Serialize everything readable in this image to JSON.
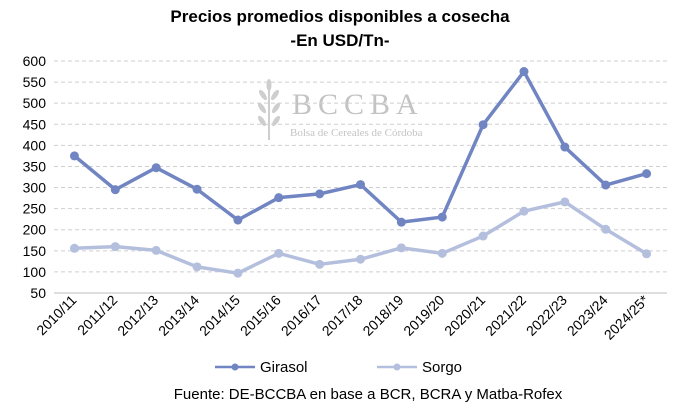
{
  "chart_data": {
    "type": "line",
    "title": "Precios promedios disponibles a cosecha",
    "subtitle": "-En USD/Tn-",
    "categories": [
      "2010/11",
      "2011/12",
      "2012/13",
      "2013/14",
      "2014/15",
      "2015/16",
      "2016/17",
      "2017/18",
      "2018/19",
      "2019/20",
      "2020/21",
      "2021/22",
      "2022/23",
      "2023/24",
      "2024/25*"
    ],
    "series": [
      {
        "name": "Girasol",
        "color": "#7085c2",
        "values": [
          375,
          295,
          347,
          296,
          223,
          276,
          285,
          307,
          218,
          230,
          449,
          575,
          396,
          306,
          333
        ]
      },
      {
        "name": "Sorgo",
        "color": "#b4bfde",
        "values": [
          156,
          160,
          151,
          112,
          97,
          144,
          118,
          130,
          157,
          144,
          185,
          244,
          266,
          201,
          143
        ]
      }
    ],
    "ylim": [
      50,
      600
    ],
    "yticks": [
      50,
      100,
      150,
      200,
      250,
      300,
      350,
      400,
      450,
      500,
      550,
      600
    ],
    "grid": true,
    "legend_position": "bottom",
    "source": "Fuente: DE-BCCBA en base a BCR, BCRA y Matba-Rofex",
    "watermark": {
      "name": "BCCBA",
      "subtitle": "Bolsa de Cereales de Córdoba",
      "icon": "wheat-icon"
    }
  }
}
